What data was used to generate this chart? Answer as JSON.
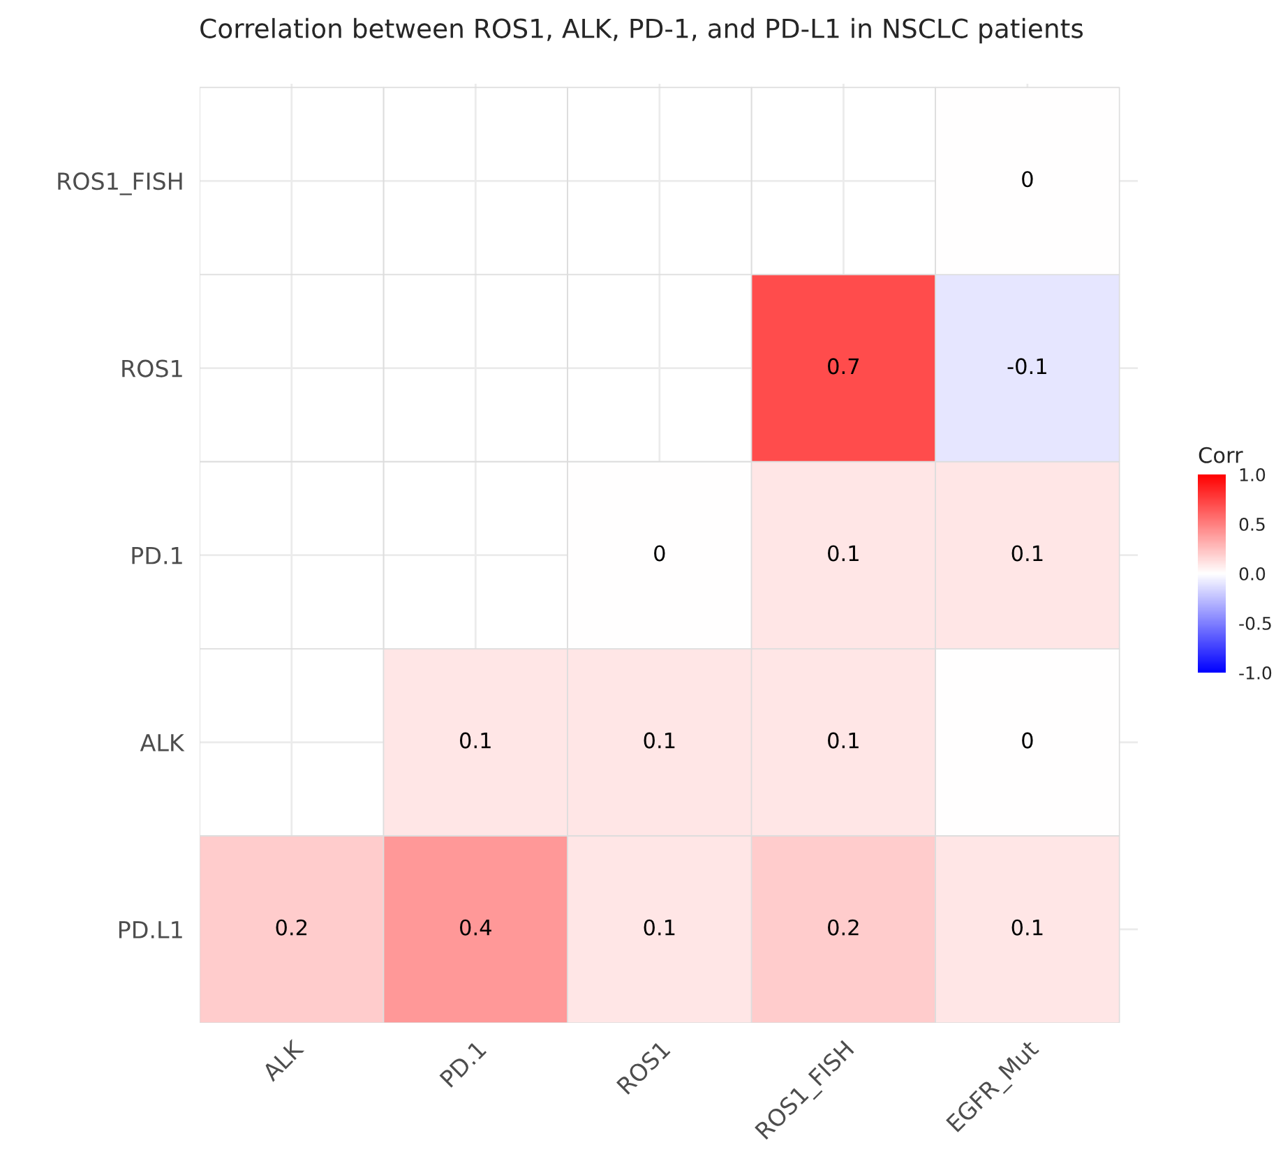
{
  "chart_data": {
    "type": "heatmap",
    "title": "Correlation between ROS1, ALK, PD-1, and PD-L1 in NSCLC patients",
    "categories": [
      "ALK",
      "PD.1",
      "ROS1",
      "ROS1_FISH",
      "EGFR_Mut"
    ],
    "y_categories": [
      "ROS1_FISH",
      "ROS1",
      "PD.1",
      "ALK",
      "PD.L1"
    ],
    "cells": [
      [
        null,
        null,
        null,
        null,
        0
      ],
      [
        null,
        null,
        null,
        0.7,
        -0.1
      ],
      [
        null,
        null,
        0,
        0.1,
        0.1
      ],
      [
        null,
        0.1,
        0.1,
        0.1,
        0
      ],
      [
        0.2,
        0.4,
        0.1,
        0.2,
        0.1
      ]
    ],
    "clabel": "Corr",
    "clim": [
      -1,
      1
    ],
    "cticks": [
      {
        "value": 1,
        "label": "1.0"
      },
      {
        "value": 0.5,
        "label": "0.5"
      },
      {
        "value": 0,
        "label": "0.0"
      },
      {
        "value": -0.5,
        "label": "-0.5"
      },
      {
        "value": -1,
        "label": "-1.0"
      }
    ],
    "data_labels": true,
    "grid": true
  }
}
